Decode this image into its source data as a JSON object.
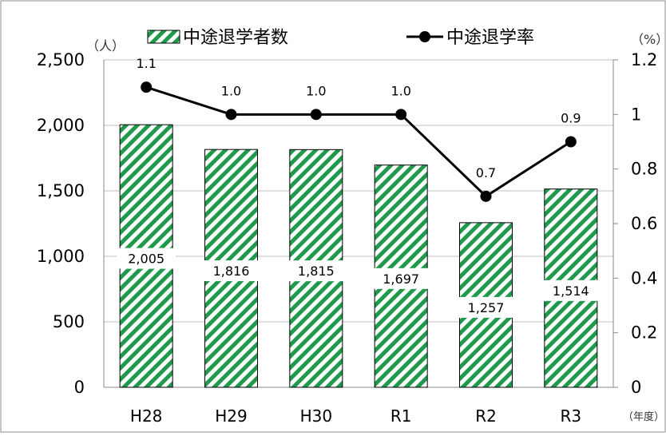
{
  "chart_data": {
    "type": "bar",
    "categories": [
      "H28",
      "H29",
      "H30",
      "R1",
      "R2",
      "R3"
    ],
    "series": [
      {
        "name": "中途退学者数",
        "type": "bar",
        "axis": "left",
        "values": [
          2005,
          1816,
          1815,
          1697,
          1257,
          1514
        ],
        "labels": [
          "2,005",
          "1,816",
          "1,815",
          "1,697",
          "1,257",
          "1,514"
        ]
      },
      {
        "name": "中途退学率",
        "type": "line",
        "axis": "right",
        "values": [
          1.1,
          1.0,
          1.0,
          1.0,
          0.7,
          0.9
        ],
        "labels": [
          "1.1",
          "1.0",
          "1.0",
          "1.0",
          "0.7",
          "0.9"
        ]
      }
    ],
    "ylim": [
      0,
      2500
    ],
    "y_ticks": [
      "0",
      "500",
      "1,000",
      "1,500",
      "2,000",
      "2,500"
    ],
    "y_unit": "（人）",
    "ylim_right": [
      0,
      1.2
    ],
    "y_right_ticks": [
      "0",
      "0.2",
      "0.4",
      "0.6",
      "0.8",
      "1",
      "1.2"
    ],
    "y_right_unit": "（%）",
    "x_unit": "（年度）",
    "grid": true,
    "legend_position": "top",
    "colors": {
      "bar_stripe": "#1e9a4a",
      "bar_background": "#ffffff",
      "line": "#000000",
      "grid": "#bfbfbf"
    }
  }
}
